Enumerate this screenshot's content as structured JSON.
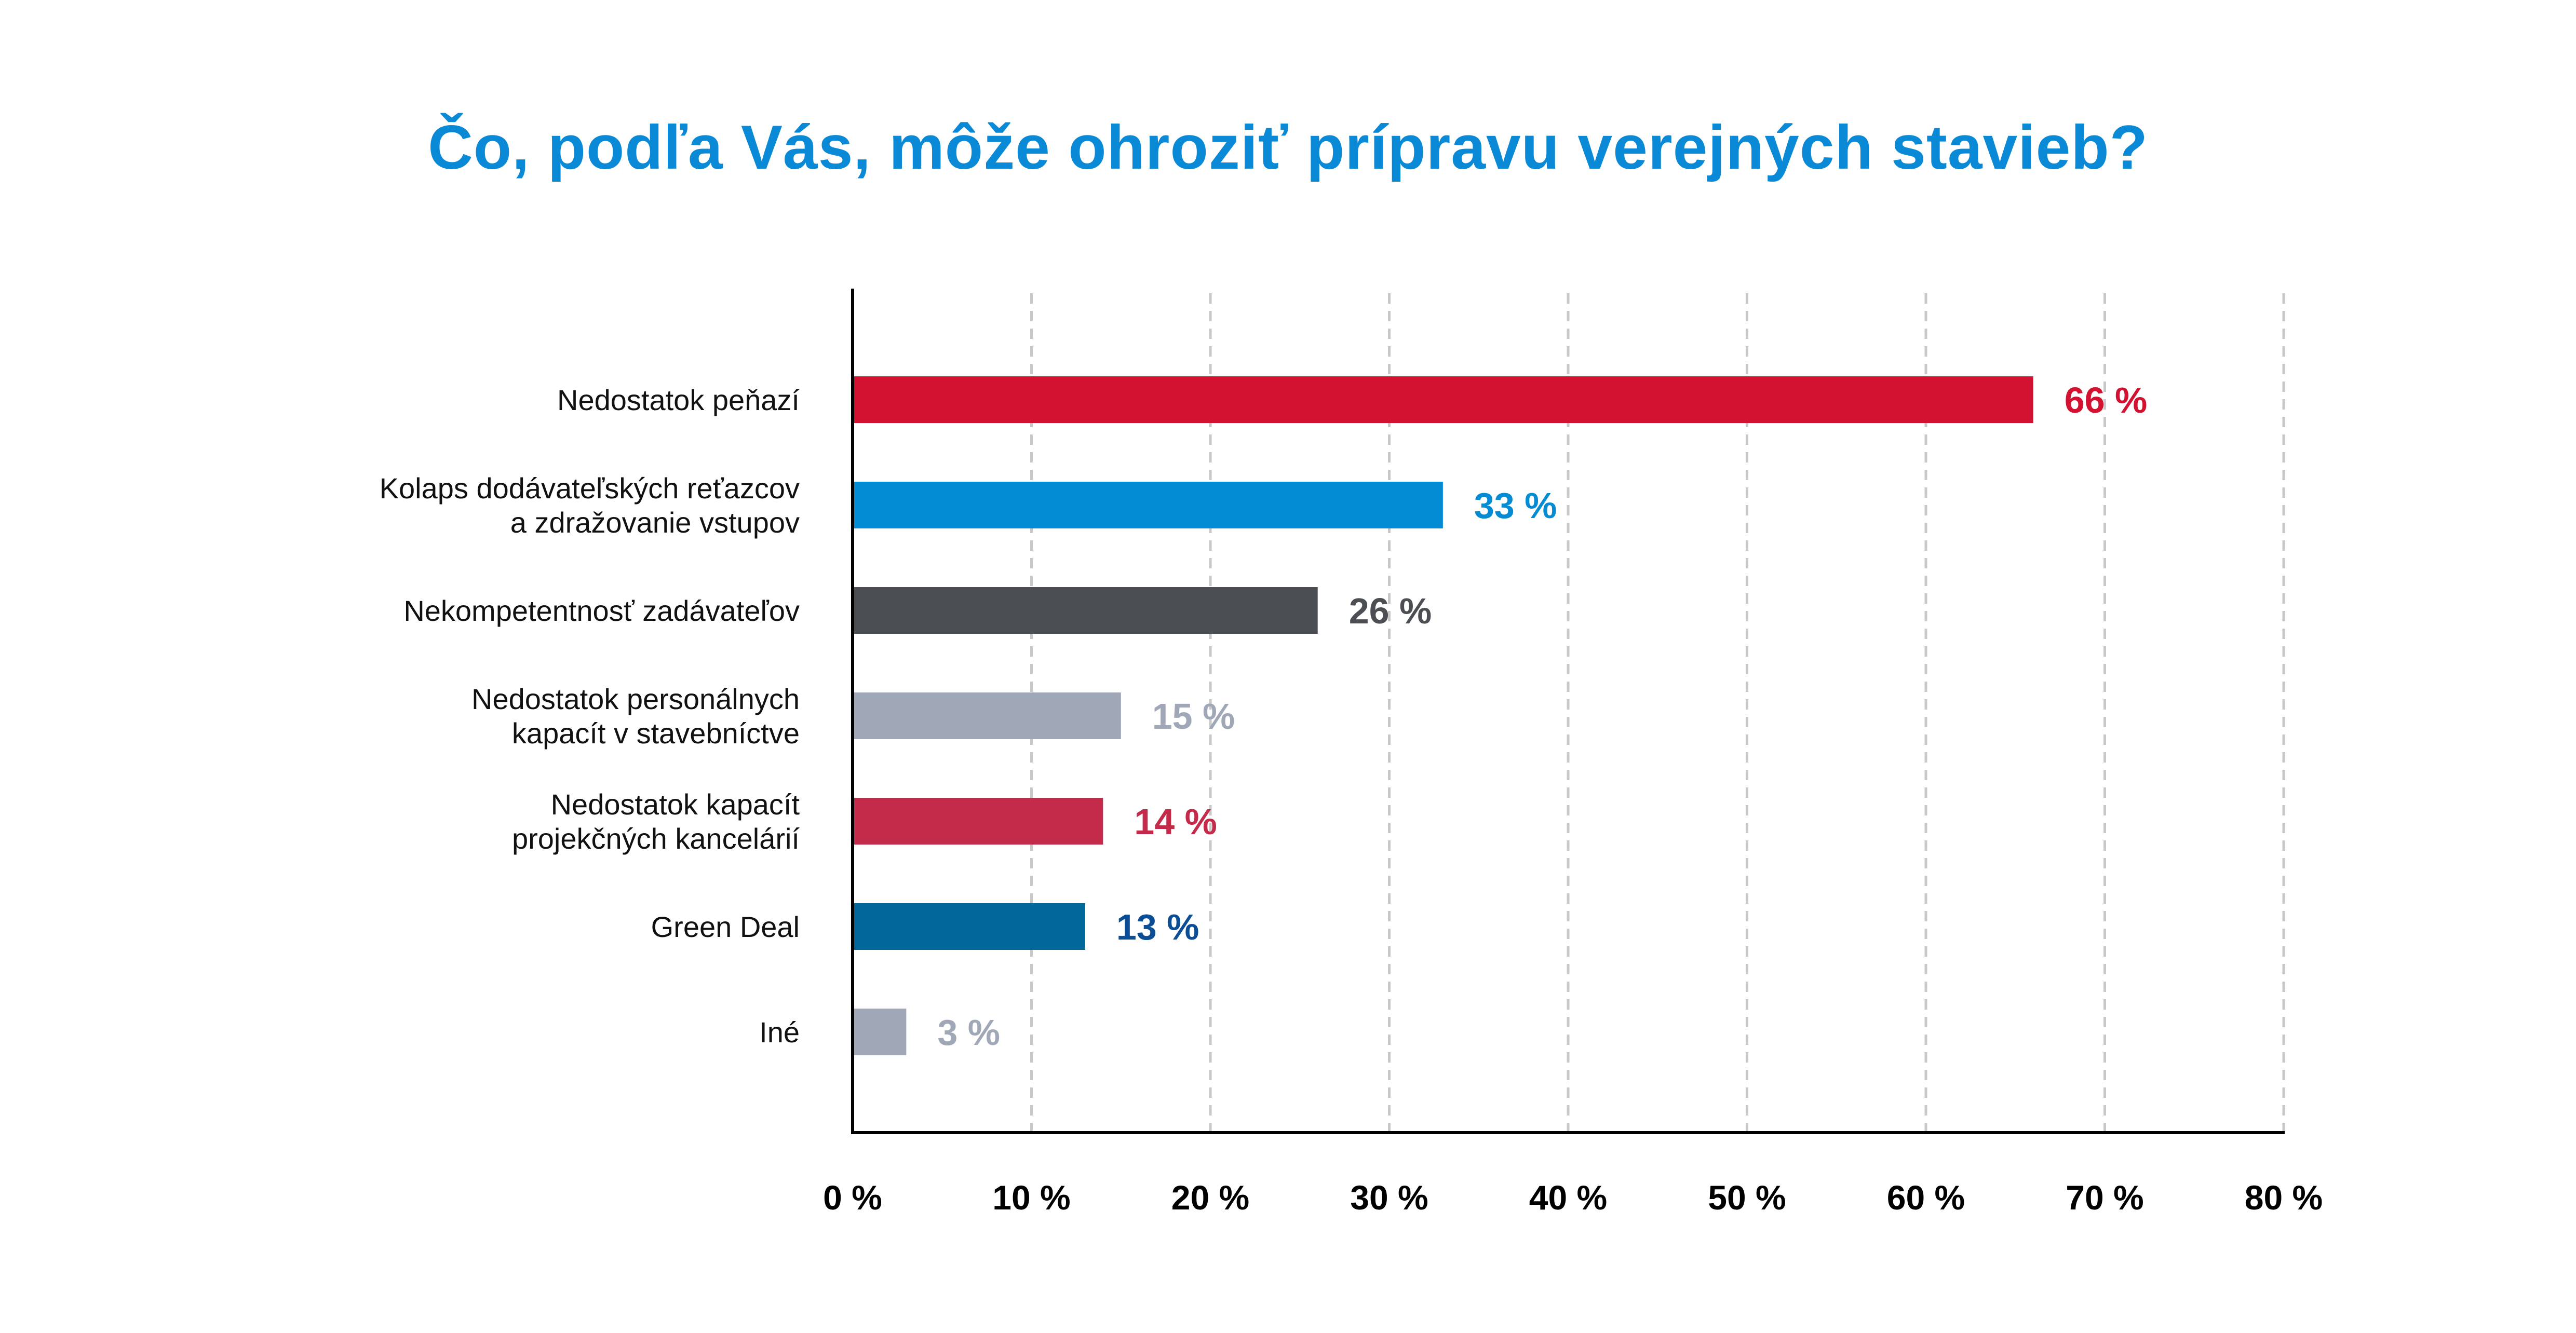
{
  "chart_data": {
    "type": "bar",
    "orientation": "horizontal",
    "title": "Čo, podľa Vás, môže ohroziť prípravu verejných stavieb?",
    "xlabel": "",
    "ylabel": "",
    "xlim": [
      0,
      80
    ],
    "grid": "vertical dashed",
    "legend": "none",
    "x_ticks": [
      "0 %",
      "10 %",
      "20 %",
      "30 %",
      "40 %",
      "50 %",
      "60 %",
      "70 %",
      "80 %"
    ],
    "x_tick_values": [
      0,
      10,
      20,
      30,
      40,
      50,
      60,
      70,
      80
    ],
    "categories": [
      [
        "Nedostatok peňazí"
      ],
      [
        "Kolaps dodávateľských reťazcov",
        "a zdražovanie vstupov"
      ],
      [
        "Nekompetentnosť zadávateľov"
      ],
      [
        "Nedostatok personálnych",
        "kapacít v stavebníctve"
      ],
      [
        "Nedostatok kapacít",
        "projekčných kancelárií"
      ],
      [
        "Green Deal"
      ],
      [
        "Iné"
      ]
    ],
    "values": [
      66,
      33,
      26,
      15,
      14,
      13,
      3
    ],
    "value_labels": [
      "66 %",
      "33 %",
      "26 %",
      "15 %",
      "14 %",
      "13 %",
      "3 %"
    ],
    "bar_colors": [
      "#d31130",
      "#038bd3",
      "#4b4f53",
      "#a0a8b8",
      "#c42b4a",
      "#02689a",
      "#a0a8b8"
    ],
    "label_colors": [
      "#d31130",
      "#038bd3",
      "#4b4f53",
      "#a0a8b8",
      "#c42b4a",
      "#0b4e96",
      "#a0a8b8"
    ]
  },
  "colors": {
    "title": "#0a8ad6",
    "axis": "#000000",
    "grid": "#c8c8c8"
  }
}
